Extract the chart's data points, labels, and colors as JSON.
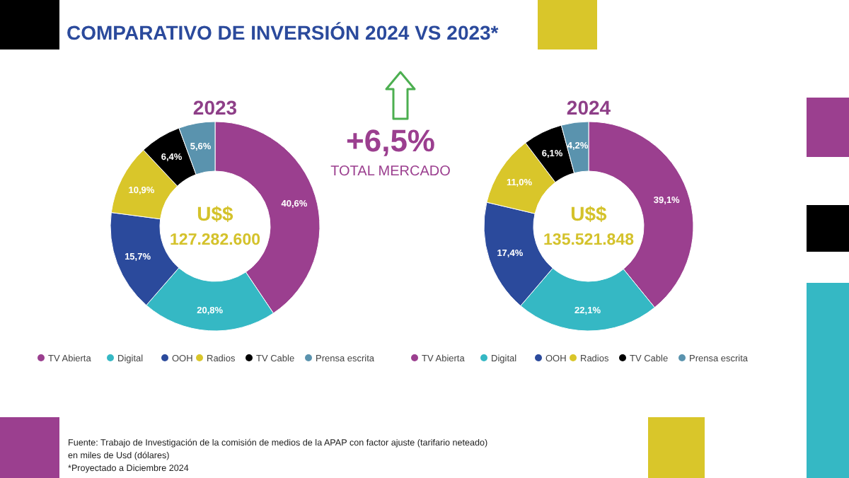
{
  "chart_data": [
    {
      "type": "other",
      "title": "COMPARATIVO DE INVERSIÓN 2024 VS 2023*",
      "annotations": [
        "+6,5%",
        "TOTAL MERCADO",
        "Fuente: Trabajo de Investigación de la comisión de medios de la APAP con factor ajuste (tarifario neteado)",
        "en miles de Usd (dólares)",
        "*Proyectado a Diciembre 2024"
      ]
    },
    {
      "type": "donut",
      "title": "2023",
      "categories": [
        "TV Abierta",
        "Digital",
        "OOH",
        "Radios",
        "TV Cable",
        "Prensa escrita"
      ],
      "values": [
        40.6,
        20.8,
        15.7,
        10.9,
        6.4,
        5.6
      ],
      "colors": [
        "#9b3f8f",
        "#35b8c4",
        "#2b4a9c",
        "#d9c62a",
        "#000000",
        "#5a93ae"
      ],
      "value_labels": [
        "40,6%",
        "20,8%",
        "15,7%",
        "10,9%",
        "6,4%",
        "5,6%"
      ],
      "legend": "bottom",
      "annotations": [
        "U$$",
        "127.282.600"
      ]
    },
    {
      "type": "donut",
      "title": "2024",
      "categories": [
        "TV Abierta",
        "Digital",
        "OOH",
        "Radios",
        "TV Cable",
        "Prensa escrita"
      ],
      "values": [
        39.1,
        22.1,
        17.4,
        11.0,
        6.1,
        4.2
      ],
      "colors": [
        "#9b3f8f",
        "#35b8c4",
        "#2b4a9c",
        "#d9c62a",
        "#000000",
        "#5a93ae"
      ],
      "value_labels": [
        "39,1%",
        "22,1%",
        "17,4%",
        "11,0%",
        "6,1%",
        "4,2%"
      ],
      "legend": "bottom",
      "annotations": [
        "U$$",
        "135.521.848"
      ]
    }
  ]
}
